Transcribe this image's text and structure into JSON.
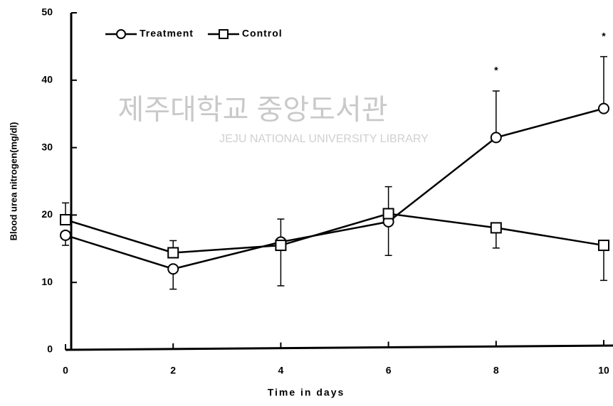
{
  "chart_data": {
    "type": "line",
    "x_label": "Time in days",
    "y_label": "Blood urea nitrogen(mg/dl)",
    "x": [
      0,
      2,
      4,
      6,
      8,
      10
    ],
    "xlim": [
      0,
      10
    ],
    "xticks": [
      0,
      2,
      4,
      6,
      8,
      10
    ],
    "ylim": [
      0,
      50
    ],
    "yticks": [
      0,
      10,
      20,
      30,
      40,
      50
    ],
    "legend": "top-left",
    "series": [
      {
        "name": "Treatment",
        "marker": "circle",
        "color": "#000000",
        "values": [
          17,
          12,
          16,
          19,
          31.5,
          35.8
        ],
        "errors": [
          1.5,
          3,
          6.5,
          5,
          6.9,
          7.7
        ],
        "error_sides": [
          "down",
          "down",
          "down",
          "down",
          "up",
          "up"
        ]
      },
      {
        "name": "Control",
        "marker": "square",
        "color": "#000000",
        "values": [
          19.3,
          14.4,
          15.5,
          20.2,
          18.1,
          15.5
        ],
        "errors": [
          2.5,
          1.8,
          3.9,
          4,
          3,
          5.2
        ],
        "error_sides": [
          "up",
          "up",
          "up",
          "up",
          "down",
          "down"
        ]
      }
    ],
    "annotations": [
      {
        "text": "*",
        "x": 8
      },
      {
        "text": "*",
        "x": 10
      }
    ],
    "watermark": {
      "title": "제주대학교 중앙도서관",
      "subtitle": "JEJU NATIONAL UNIVERSITY LIBRARY"
    }
  }
}
